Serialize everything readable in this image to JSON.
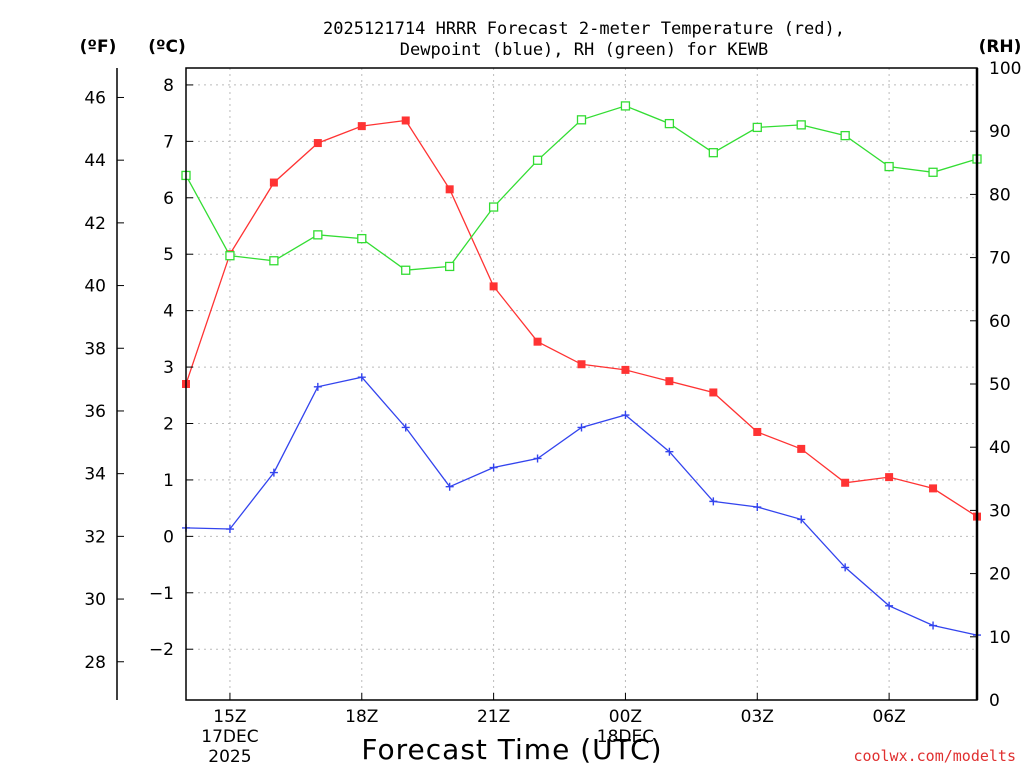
{
  "title_line1": "2025121714 HRRR Forecast 2-meter Temperature (red),",
  "title_line2": "Dewpoint (blue), RH (green) for KEWB",
  "unit_f": "(ºF)",
  "unit_c": "(ºC)",
  "unit_rh": "(RH)",
  "xlabel": "Forecast Time (UTC)",
  "credit": "coolwx.com/modelts",
  "colors": {
    "temperature": "#ff3333",
    "dewpoint": "#3344ee",
    "rh": "#33dd33",
    "credit": "#e03030",
    "grid": "#bbbbbb"
  },
  "chart_data": {
    "type": "line",
    "title": "2025121714 HRRR Forecast 2-meter Temperature (red), Dewpoint (blue), RH (green) for KEWB",
    "xlabel": "Forecast Time (UTC)",
    "x_hours": [
      14,
      15,
      16,
      17,
      18,
      19,
      20,
      21,
      22,
      23,
      24,
      25,
      26,
      27,
      28,
      29,
      30,
      31,
      32
    ],
    "xlim": [
      14,
      32
    ],
    "xticks": [
      {
        "hour": 15,
        "lines": [
          "15Z",
          "17DEC",
          "2025"
        ]
      },
      {
        "hour": 18,
        "lines": [
          "18Z"
        ]
      },
      {
        "hour": 21,
        "lines": [
          "21Z"
        ]
      },
      {
        "hour": 24,
        "lines": [
          "00Z",
          "18DEC"
        ]
      },
      {
        "hour": 27,
        "lines": [
          "03Z"
        ]
      },
      {
        "hour": 30,
        "lines": [
          "06Z"
        ]
      }
    ],
    "axes": {
      "celsius": {
        "label": "(ºC)",
        "ylim": [
          -2.9,
          8.3
        ],
        "ticks": [
          -2,
          -1,
          0,
          1,
          2,
          3,
          4,
          5,
          6,
          7,
          8
        ]
      },
      "fahrenheit": {
        "label": "(ºF)",
        "ticks": [
          28,
          30,
          32,
          34,
          36,
          38,
          40,
          42,
          44,
          46
        ]
      },
      "rh": {
        "label": "(RH)",
        "ylim": [
          0,
          100
        ],
        "ticks": [
          0,
          10,
          20,
          30,
          40,
          50,
          60,
          70,
          80,
          90,
          100
        ]
      }
    },
    "series": [
      {
        "name": "2-meter Temperature",
        "color": "red",
        "axis": "celsius",
        "marker": "filled-square",
        "values": [
          2.7,
          5.0,
          6.27,
          6.97,
          7.27,
          7.37,
          6.15,
          4.43,
          3.45,
          3.05,
          2.95,
          2.75,
          2.55,
          1.85,
          1.55,
          0.95,
          1.05,
          0.85,
          0.35
        ]
      },
      {
        "name": "Dewpoint",
        "color": "blue",
        "axis": "celsius",
        "marker": "plus",
        "values": [
          0.15,
          0.13,
          1.13,
          2.65,
          2.82,
          1.93,
          0.88,
          1.22,
          1.38,
          1.93,
          2.15,
          1.5,
          0.62,
          0.52,
          0.3,
          -0.55,
          -1.23,
          -1.58,
          -1.75
        ]
      },
      {
        "name": "RH",
        "color": "green",
        "axis": "rh",
        "marker": "open-square",
        "values": [
          83,
          70.3,
          69.5,
          73.6,
          73,
          68,
          68.6,
          78,
          85.4,
          91.8,
          94,
          91.2,
          86.6,
          90.6,
          91,
          89.3,
          84.4,
          83.5,
          85.6
        ]
      }
    ]
  }
}
